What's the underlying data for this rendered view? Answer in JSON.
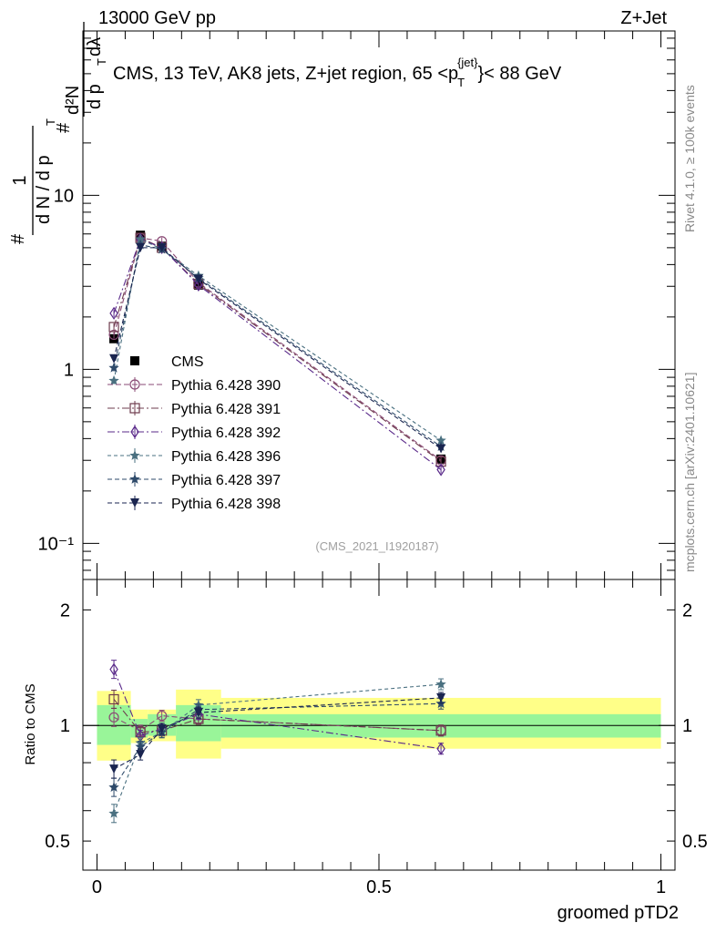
{
  "header": {
    "left": "13000 GeV pp",
    "right": "Z+Jet"
  },
  "side_labels": {
    "rivet": "Rivet 4.1.0, ≥ 100k events",
    "mcplots": "mcplots.cern.ch [arXiv:2401.10621]"
  },
  "chart_data": [
    {
      "type": "scatter",
      "title": "CMS, 13 TeV, AK8 jets, Z+jet region, 65 <p_T^{jet}< 88 GeV",
      "title_parts": {
        "main": "CMS, 13 TeV, AK8 jets, Z+jet region, 65 <p",
        "sub": "T",
        "sup": "{jet}",
        "tail": "}< 88 GeV"
      },
      "ylabel": "1/(dN/dp_T) d²N/(dp_T dλ)",
      "ylabel_parts": {
        "hash": "#",
        "one": "1",
        "dN": "d N / d p",
        "d2N": "d²N",
        "dp": "d p",
        "T": "T",
        "dl": "dλ"
      },
      "yscale": "log",
      "ylim": [
        0.062,
        88
      ],
      "xlim": [
        -0.025,
        1.025
      ],
      "ytick_labels": [
        "10⁻¹",
        "1",
        "10"
      ],
      "yticks": [
        0.1,
        1,
        10
      ],
      "watermark": "(CMS_2021_I1920187)",
      "legend_position": "center-left",
      "x": [
        0.03,
        0.077,
        0.115,
        0.18,
        0.61
      ],
      "series": [
        {
          "name": "CMS",
          "color": "#000000",
          "marker": "square-filled",
          "values": [
            1.5,
            5.9,
            5.1,
            3.05,
            0.305
          ],
          "band": true
        },
        {
          "name": "Pythia 6.428 390",
          "color": "#8a4a75",
          "marker": "circle-open",
          "dash": "6,3",
          "values": [
            1.58,
            5.7,
            5.45,
            3.15,
            0.3
          ]
        },
        {
          "name": "Pythia 6.428 391",
          "color": "#6d3b4d",
          "marker": "square-open",
          "dash": "8,3,2,3",
          "values": [
            1.75,
            5.7,
            5.0,
            3.1,
            0.295
          ]
        },
        {
          "name": "Pythia 6.428 392",
          "color": "#5a2a8a",
          "marker": "diamond-open",
          "dash": "8,3,2,3",
          "values": [
            2.1,
            5.6,
            5.0,
            3.05,
            0.265
          ]
        },
        {
          "name": "Pythia 6.428 396",
          "color": "#4a7080",
          "marker": "star-filled",
          "dash": "4,3",
          "values": [
            0.86,
            5.6,
            4.9,
            3.45,
            0.39
          ]
        },
        {
          "name": "Pythia 6.428 397",
          "color": "#2e4a6a",
          "marker": "star-filled",
          "dash": "5,3",
          "values": [
            1.02,
            5.2,
            4.9,
            3.35,
            0.36
          ]
        },
        {
          "name": "Pythia 6.428 398",
          "color": "#1a2550",
          "marker": "triangle-down-filled",
          "dash": "5,3",
          "values": [
            1.15,
            5.0,
            5.0,
            3.3,
            0.35
          ]
        }
      ]
    },
    {
      "type": "scatter",
      "ylabel": "Ratio to CMS",
      "xlabel": "groomed pTD2",
      "yscale": "log",
      "ylim": [
        0.42,
        2.4
      ],
      "xlim": [
        -0.025,
        1.025
      ],
      "yticks": [
        0.5,
        1,
        2
      ],
      "ytick_labels": [
        "0.5",
        "1",
        "2"
      ],
      "xticks": [
        0,
        0.5,
        1
      ],
      "xtick_labels": [
        "0",
        "0.5",
        "1"
      ],
      "bin_edges": [
        0.0,
        0.06,
        0.09,
        0.14,
        0.22,
        1.0
      ],
      "band_inner": [
        [
          0.89,
          1.13
        ],
        [
          0.93,
          1.04
        ],
        [
          0.94,
          1.07
        ],
        [
          0.91,
          1.13
        ],
        [
          0.93,
          1.07
        ]
      ],
      "band_outer": [
        [
          0.81,
          1.23
        ],
        [
          0.9,
          1.1
        ],
        [
          0.91,
          1.1
        ],
        [
          0.82,
          1.24
        ],
        [
          0.87,
          1.18
        ]
      ],
      "x": [
        0.03,
        0.077,
        0.115,
        0.18,
        0.61
      ],
      "ratios": [
        {
          "name": "Pythia 6.428 390",
          "values": [
            1.05,
            0.97,
            1.06,
            1.04,
            0.97
          ]
        },
        {
          "name": "Pythia 6.428 391",
          "values": [
            1.17,
            0.96,
            0.97,
            1.04,
            0.97
          ]
        },
        {
          "name": "Pythia 6.428 392",
          "values": [
            1.4,
            0.94,
            0.98,
            1.07,
            0.87
          ]
        },
        {
          "name": "Pythia 6.428 396",
          "values": [
            0.59,
            0.9,
            0.96,
            1.13,
            1.28
          ]
        },
        {
          "name": "Pythia 6.428 397",
          "values": [
            0.69,
            0.88,
            0.96,
            1.1,
            1.14
          ]
        },
        {
          "name": "Pythia 6.428 398",
          "values": [
            0.77,
            0.84,
            0.98,
            1.08,
            1.18
          ]
        }
      ]
    }
  ]
}
